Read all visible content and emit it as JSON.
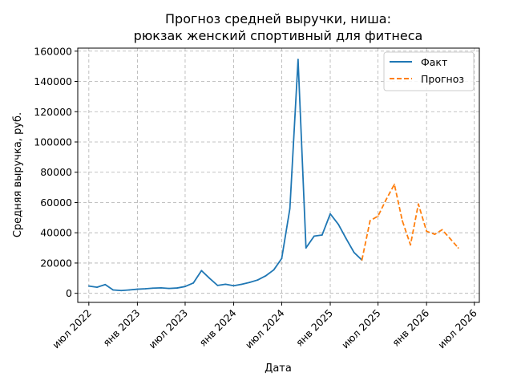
{
  "chart_data": {
    "type": "line",
    "title_lines": [
      "Прогноз средней выручки, ниша:",
      "рюкзак женский спортивный для фитнеса"
    ],
    "xlabel": "Дата",
    "ylabel": "Средняя выручка, руб.",
    "grid": true,
    "legend_position": "top-right",
    "y_ticks": [
      0,
      20000,
      40000,
      60000,
      80000,
      100000,
      120000,
      140000,
      160000
    ],
    "ylim": [
      -6000,
      162000
    ],
    "xlim": [
      "2022-05-20",
      "2026-07-20"
    ],
    "x_ticks": [
      {
        "date": "2022-07-01",
        "label": "июл 2022"
      },
      {
        "date": "2023-01-01",
        "label": "янв 2023"
      },
      {
        "date": "2023-07-01",
        "label": "июл 2023"
      },
      {
        "date": "2024-01-01",
        "label": "янв 2024"
      },
      {
        "date": "2024-07-01",
        "label": "июл 2024"
      },
      {
        "date": "2025-01-01",
        "label": "янв 2025"
      },
      {
        "date": "2025-07-01",
        "label": "июл 2025"
      },
      {
        "date": "2026-01-01",
        "label": "янв 2026"
      },
      {
        "date": "2026-07-01",
        "label": "июл 2026"
      }
    ],
    "series": [
      {
        "name": "Факт",
        "color": "#1f77b4",
        "dash": "solid",
        "points": [
          [
            "2022-07-01",
            4800
          ],
          [
            "2022-08-01",
            4000
          ],
          [
            "2022-09-01",
            5800
          ],
          [
            "2022-10-01",
            2200
          ],
          [
            "2022-11-01",
            1800
          ],
          [
            "2022-12-01",
            2200
          ],
          [
            "2023-01-01",
            2700
          ],
          [
            "2023-02-01",
            3000
          ],
          [
            "2023-03-01",
            3400
          ],
          [
            "2023-04-01",
            3600
          ],
          [
            "2023-05-01",
            3200
          ],
          [
            "2023-06-01",
            3500
          ],
          [
            "2023-07-01",
            4500
          ],
          [
            "2023-08-01",
            6800
          ],
          [
            "2023-09-01",
            15000
          ],
          [
            "2023-10-01",
            10000
          ],
          [
            "2023-11-01",
            5200
          ],
          [
            "2023-12-01",
            6000
          ],
          [
            "2024-01-01",
            5000
          ],
          [
            "2024-02-01",
            6000
          ],
          [
            "2024-03-01",
            7200
          ],
          [
            "2024-04-01",
            8800
          ],
          [
            "2024-05-01",
            11500
          ],
          [
            "2024-06-01",
            15500
          ],
          [
            "2024-07-01",
            23000
          ],
          [
            "2024-08-01",
            56000
          ],
          [
            "2024-09-01",
            154500
          ],
          [
            "2024-10-01",
            30000
          ],
          [
            "2024-11-01",
            37800
          ],
          [
            "2024-12-01",
            38500
          ],
          [
            "2025-01-01",
            52500
          ],
          [
            "2025-02-01",
            45500
          ],
          [
            "2025-03-01",
            36500
          ],
          [
            "2025-04-01",
            27000
          ],
          [
            "2025-05-01",
            22000
          ]
        ]
      },
      {
        "name": "Прогноз",
        "color": "#ff7f0e",
        "dash": "dashed",
        "points": [
          [
            "2025-05-01",
            22000
          ],
          [
            "2025-06-01",
            48000
          ],
          [
            "2025-07-01",
            51000
          ],
          [
            "2025-08-01",
            62000
          ],
          [
            "2025-09-01",
            72000
          ],
          [
            "2025-10-01",
            48000
          ],
          [
            "2025-11-01",
            32000
          ],
          [
            "2025-12-01",
            59000
          ],
          [
            "2026-01-01",
            41000
          ],
          [
            "2026-02-01",
            39000
          ],
          [
            "2026-03-01",
            42000
          ],
          [
            "2026-04-01",
            36000
          ],
          [
            "2026-05-01",
            30000
          ]
        ]
      }
    ]
  }
}
